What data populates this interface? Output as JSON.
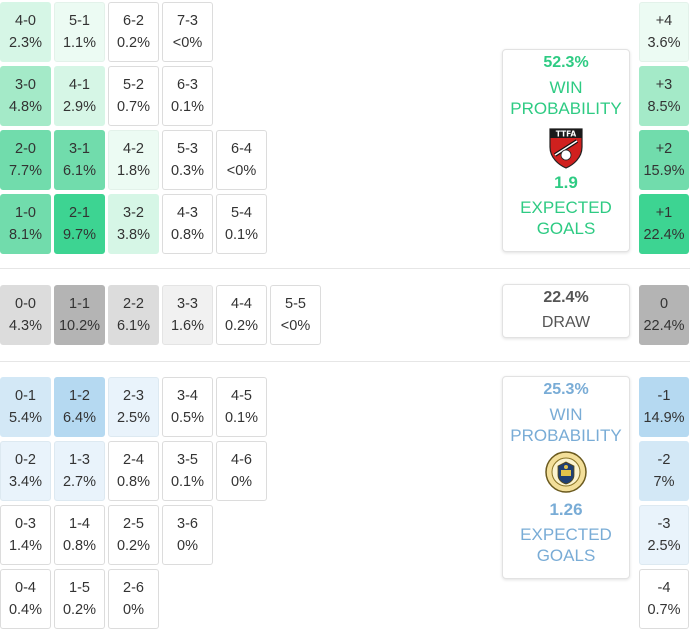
{
  "colors": {
    "home": "#2ecb83",
    "away": "#79acd6",
    "draw": "#b4b4b4"
  },
  "home_grid": [
    [
      {
        "score": "4-0",
        "prob": "2.3%",
        "shade": "g1"
      },
      {
        "score": "5-1",
        "prob": "1.1%",
        "shade": "g0"
      },
      {
        "score": "6-2",
        "prob": "0.2%",
        "shade": "w"
      },
      {
        "score": "7-3",
        "prob": "<0%",
        "shade": "w"
      }
    ],
    [
      {
        "score": "3-0",
        "prob": "4.8%",
        "shade": "g2"
      },
      {
        "score": "4-1",
        "prob": "2.9%",
        "shade": "g1"
      },
      {
        "score": "5-2",
        "prob": "0.7%",
        "shade": "w"
      },
      {
        "score": "6-3",
        "prob": "0.1%",
        "shade": "w"
      }
    ],
    [
      {
        "score": "2-0",
        "prob": "7.7%",
        "shade": "g3"
      },
      {
        "score": "3-1",
        "prob": "6.1%",
        "shade": "g3"
      },
      {
        "score": "4-2",
        "prob": "1.8%",
        "shade": "g0"
      },
      {
        "score": "5-3",
        "prob": "0.3%",
        "shade": "w"
      },
      {
        "score": "6-4",
        "prob": "<0%",
        "shade": "w"
      }
    ],
    [
      {
        "score": "1-0",
        "prob": "8.1%",
        "shade": "g3"
      },
      {
        "score": "2-1",
        "prob": "9.7%",
        "shade": "g4"
      },
      {
        "score": "3-2",
        "prob": "3.8%",
        "shade": "g1"
      },
      {
        "score": "4-3",
        "prob": "0.8%",
        "shade": "w"
      },
      {
        "score": "5-4",
        "prob": "0.1%",
        "shade": "w"
      }
    ]
  ],
  "draw_row": [
    {
      "score": "0-0",
      "prob": "4.3%",
      "shade": "d2"
    },
    {
      "score": "1-1",
      "prob": "10.2%",
      "shade": "d3"
    },
    {
      "score": "2-2",
      "prob": "6.1%",
      "shade": "d2"
    },
    {
      "score": "3-3",
      "prob": "1.6%",
      "shade": "d1"
    },
    {
      "score": "4-4",
      "prob": "0.2%",
      "shade": "w"
    },
    {
      "score": "5-5",
      "prob": "<0%",
      "shade": "w"
    }
  ],
  "away_grid": [
    [
      {
        "score": "0-1",
        "prob": "5.4%",
        "shade": "b2"
      },
      {
        "score": "1-2",
        "prob": "6.4%",
        "shade": "b3"
      },
      {
        "score": "2-3",
        "prob": "2.5%",
        "shade": "b1"
      },
      {
        "score": "3-4",
        "prob": "0.5%",
        "shade": "w"
      },
      {
        "score": "4-5",
        "prob": "0.1%",
        "shade": "w"
      }
    ],
    [
      {
        "score": "0-2",
        "prob": "3.4%",
        "shade": "b1"
      },
      {
        "score": "1-3",
        "prob": "2.7%",
        "shade": "b1"
      },
      {
        "score": "2-4",
        "prob": "0.8%",
        "shade": "w"
      },
      {
        "score": "3-5",
        "prob": "0.1%",
        "shade": "w"
      },
      {
        "score": "4-6",
        "prob": "0%",
        "shade": "w"
      }
    ],
    [
      {
        "score": "0-3",
        "prob": "1.4%",
        "shade": "w"
      },
      {
        "score": "1-4",
        "prob": "0.8%",
        "shade": "w"
      },
      {
        "score": "2-5",
        "prob": "0.2%",
        "shade": "w"
      },
      {
        "score": "3-6",
        "prob": "0%",
        "shade": "w"
      }
    ],
    [
      {
        "score": "0-4",
        "prob": "0.4%",
        "shade": "w"
      },
      {
        "score": "1-5",
        "prob": "0.2%",
        "shade": "w"
      },
      {
        "score": "2-6",
        "prob": "0%",
        "shade": "w"
      }
    ]
  ],
  "home_margins": [
    {
      "margin": "+4",
      "prob": "3.6%",
      "shade": "g0"
    },
    {
      "margin": "+3",
      "prob": "8.5%",
      "shade": "g2"
    },
    {
      "margin": "+2",
      "prob": "15.9%",
      "shade": "g3"
    },
    {
      "margin": "+1",
      "prob": "22.4%",
      "shade": "g4"
    }
  ],
  "draw_margin": {
    "margin": "0",
    "prob": "22.4%",
    "shade": "d3"
  },
  "away_margins": [
    {
      "margin": "-1",
      "prob": "14.9%",
      "shade": "b3"
    },
    {
      "margin": "-2",
      "prob": "7%",
      "shade": "b2"
    },
    {
      "margin": "-3",
      "prob": "2.5%",
      "shade": "b1"
    },
    {
      "margin": "-4",
      "prob": "0.7%",
      "shade": "w"
    }
  ],
  "home_panel": {
    "win_pct": "52.3%",
    "win_label_1": "WIN",
    "win_label_2": "PROBABILITY",
    "logo_icon": "ttfa-crest-icon",
    "logo_text": "TTFA",
    "xg": "1.9",
    "xg_label_1": "EXPECTED",
    "xg_label_2": "GOALS"
  },
  "draw_panel": {
    "pct": "22.4%",
    "label": "DRAW"
  },
  "away_panel": {
    "win_pct": "25.3%",
    "win_label_1": "WIN",
    "win_label_2": "PROBABILITY",
    "logo_icon": "federation-crest-icon",
    "xg": "1.26",
    "xg_label_1": "EXPECTED",
    "xg_label_2": "GOALS"
  }
}
